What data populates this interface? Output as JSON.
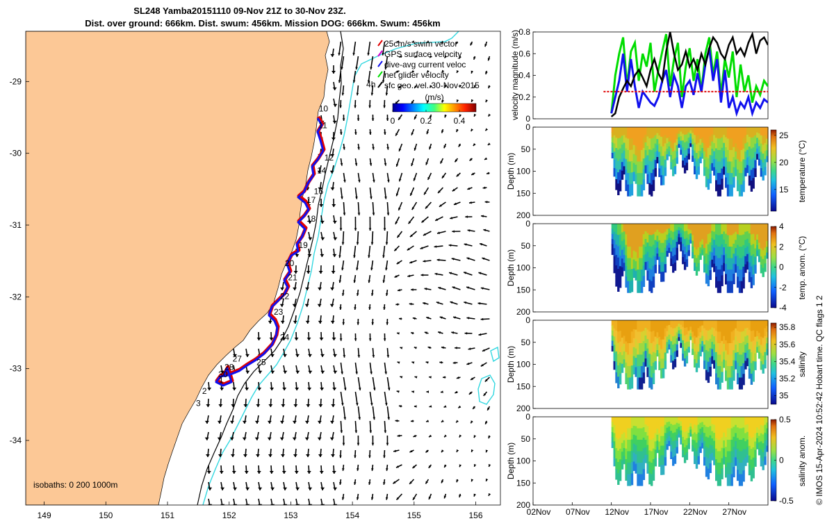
{
  "title": {
    "line1": "SL248 Yamba20151110 09-Nov 21Z to 30-Nov 23Z.",
    "line2": "Dist. over ground: 666km. Dist. swum: 456km. Mission DOG: 666km. Swum: 456km"
  },
  "credit": "© IMOS 15-Apr-2024 10:52:42 Hobart time. QC flags 1 2",
  "colors": {
    "land": "#fcc896",
    "track_red": "#e00000",
    "track_blue": "#1010ee",
    "isobath_200": "#000000",
    "isobath_1000": "#31d7e0",
    "gps": "#d000d0",
    "net": "#00dd00"
  },
  "chart_data": [
    {
      "type": "map",
      "title": "SL248 Yamba20151110 09-Nov 21Z to 30-Nov 23Z.",
      "xticks": [
        149,
        150,
        151,
        152,
        153,
        154,
        155,
        156
      ],
      "yticks": [
        -29,
        -30,
        -31,
        -32,
        -33,
        -34
      ],
      "xlim": [
        148.7,
        156.4
      ],
      "ylim": [
        -34.9,
        -28.3
      ],
      "legend": [
        {
          "label": "25cm/s swim vector",
          "color": "#e00000",
          "icon": "swim-vector"
        },
        {
          "label": "GPS surface velocity",
          "color": "#d000d0",
          "icon": "gps-vector"
        },
        {
          "label": "dive-avg current veloc",
          "color": "#1010ee",
          "icon": "dive-avg-vector"
        },
        {
          "label": "net glider velocity",
          "color": "#00dd00",
          "icon": "net-vector"
        },
        {
          "label": "sfc geo. vel. 30-Nov-2015",
          "color": "#000000",
          "icon": "geo-vector"
        }
      ],
      "legend_position": "top-right",
      "colorbar": {
        "label": "(m/s)",
        "ticks": [
          0,
          0.2,
          0.4
        ],
        "range": [
          0,
          0.5
        ]
      },
      "isobath_label": "isobaths: 0   200  1000m",
      "track_labels": [
        {
          "text": "10",
          "lon": 153.53,
          "lat": -29.42
        },
        {
          "text": "11",
          "lon": 153.52,
          "lat": -29.65
        },
        {
          "text": "12",
          "lon": 153.62,
          "lat": -30.1
        },
        {
          "text": "14",
          "lon": 153.5,
          "lat": -30.28
        },
        {
          "text": "16",
          "lon": 153.45,
          "lat": -30.57
        },
        {
          "text": "17",
          "lon": 153.33,
          "lat": -30.69
        },
        {
          "text": "18",
          "lon": 153.33,
          "lat": -30.95
        },
        {
          "text": "19",
          "lon": 153.2,
          "lat": -31.32
        },
        {
          "text": "20",
          "lon": 152.98,
          "lat": -31.57
        },
        {
          "text": "21",
          "lon": 153.03,
          "lat": -31.77
        },
        {
          "text": "22",
          "lon": 152.9,
          "lat": -32.03
        },
        {
          "text": "23",
          "lon": 152.8,
          "lat": -32.25
        },
        {
          "text": "24",
          "lon": 152.9,
          "lat": -32.6
        },
        {
          "text": "25",
          "lon": 152.52,
          "lat": -32.95
        },
        {
          "text": "27",
          "lon": 152.13,
          "lat": -32.9
        },
        {
          "text": "28",
          "lon": 152.0,
          "lat": -33.02
        },
        {
          "text": "30",
          "lon": 151.9,
          "lat": -33.12
        },
        {
          "text": "1",
          "lon": 151.87,
          "lat": -33.2
        },
        {
          "text": "2",
          "lon": 151.6,
          "lat": -33.35
        },
        {
          "text": "3",
          "lon": 151.5,
          "lat": -33.52
        },
        {
          "text": "4h",
          "lon": 154.3,
          "lat": -29.08
        }
      ]
    },
    {
      "type": "line",
      "ylabel": "velocity magnitude (m/s)",
      "ylim": [
        0,
        0.8
      ],
      "yticks": [
        0,
        0.2,
        0.4,
        0.6,
        0.8
      ],
      "xlim": [
        0,
        30
      ],
      "series": [
        {
          "color": "#00dd00",
          "x": [
            10,
            10.5,
            11,
            11.5,
            12,
            12.5,
            13,
            13.5,
            14,
            14.5,
            15,
            15.5,
            16,
            16.5,
            17,
            17.5,
            18,
            18.5,
            19,
            19.5,
            20,
            20.5,
            21,
            21.5,
            22,
            22.5,
            23,
            23.5,
            24,
            24.5,
            25,
            25.5,
            26,
            26.5,
            27,
            27.5,
            28,
            28.5,
            29,
            29.5,
            30
          ],
          "values": [
            0.05,
            0.4,
            0.6,
            0.75,
            0.3,
            0.62,
            0.7,
            0.35,
            0.6,
            0.48,
            0.7,
            0.25,
            0.45,
            0.62,
            0.78,
            0.3,
            0.55,
            0.7,
            0.2,
            0.48,
            0.65,
            0.35,
            0.55,
            0.25,
            0.6,
            0.75,
            0.4,
            0.62,
            0.22,
            0.55,
            0.38,
            0.62,
            0.2,
            0.5,
            0.25,
            0.4,
            0.15,
            0.3,
            0.22,
            0.35,
            0.3
          ]
        },
        {
          "color": "#1010ee",
          "x": [
            10,
            10.5,
            11,
            11.5,
            12,
            12.5,
            13,
            13.5,
            14,
            14.5,
            15,
            15.5,
            16,
            16.5,
            17,
            17.5,
            18,
            18.5,
            19,
            19.5,
            20,
            20.5,
            21,
            21.5,
            22,
            22.5,
            23,
            23.5,
            24,
            24.5,
            25,
            25.5,
            26,
            26.5,
            27,
            27.5,
            28,
            28.5,
            29,
            29.5,
            30
          ],
          "values": [
            0.05,
            0.2,
            0.35,
            0.6,
            0.25,
            0.55,
            0.3,
            0.1,
            0.25,
            0.2,
            0.15,
            0.12,
            0.2,
            0.35,
            0.45,
            0.2,
            0.4,
            0.3,
            0.1,
            0.3,
            0.35,
            0.22,
            0.42,
            0.25,
            0.5,
            0.65,
            0.35,
            0.55,
            0.15,
            0.45,
            0.1,
            0.2,
            0.05,
            0.15,
            0.1,
            0.2,
            0.05,
            0.15,
            0.1,
            0.18,
            0.15
          ]
        },
        {
          "color": "#000000",
          "x": [
            10,
            10.5,
            11,
            11.5,
            12,
            12.5,
            13,
            13.5,
            14,
            14.5,
            15,
            15.5,
            16,
            16.5,
            17,
            17.5,
            18,
            18.5,
            19,
            19.5,
            20,
            20.5,
            21,
            21.5,
            22,
            22.5,
            23,
            23.5,
            24,
            24.5,
            25,
            25.5,
            26,
            26.5,
            27,
            27.5,
            28,
            28.5,
            29,
            29.5,
            30
          ],
          "values": [
            0.02,
            0.05,
            0.2,
            0.28,
            0.35,
            0.3,
            0.4,
            0.45,
            0.38,
            0.3,
            0.45,
            0.55,
            0.42,
            0.35,
            0.62,
            0.8,
            0.6,
            0.45,
            0.5,
            0.62,
            0.48,
            0.55,
            0.45,
            0.6,
            0.5,
            0.65,
            0.75,
            0.7,
            0.6,
            0.55,
            0.68,
            0.75,
            0.6,
            0.65,
            0.58,
            0.7,
            0.78,
            0.6,
            0.72,
            0.75,
            0.68
          ]
        },
        {
          "color": "#e00000",
          "x": [
            9,
            30
          ],
          "values": [
            0.25,
            0.25
          ]
        }
      ]
    },
    {
      "type": "heatmap",
      "ylabel": "Depth (m)",
      "clabel": "temperature (°C)",
      "ylim": [
        0,
        200
      ],
      "yticks": [
        0,
        50,
        100,
        150,
        200
      ],
      "cticks": [
        15,
        20,
        25
      ],
      "crange": [
        11,
        26
      ]
    },
    {
      "type": "heatmap",
      "ylabel": "Depth (m)",
      "clabel": "temp. anom. (°C)",
      "ylim": [
        0,
        200
      ],
      "yticks": [
        0,
        50,
        100,
        150,
        200
      ],
      "cticks": [
        -4,
        -2,
        0,
        2,
        4
      ],
      "crange": [
        -4,
        4
      ]
    },
    {
      "type": "heatmap",
      "ylabel": "Depth (m)",
      "clabel": "salinity",
      "ylim": [
        0,
        200
      ],
      "yticks": [
        0,
        50,
        100,
        150,
        200
      ],
      "cticks": [
        35,
        35.2,
        35.4,
        35.6,
        35.8
      ],
      "crange": [
        34.9,
        35.85
      ]
    },
    {
      "type": "heatmap",
      "ylabel": "Depth (m)",
      "clabel": "salinity anom.",
      "ylim": [
        0,
        200
      ],
      "yticks": [
        0,
        50,
        100,
        150,
        200
      ],
      "cticks": [
        -0.5,
        0,
        0.5
      ],
      "crange": [
        -0.5,
        0.5
      ],
      "xticks": [
        "02Nov",
        "07Nov",
        "12Nov",
        "17Nov",
        "22Nov",
        "27Nov"
      ]
    }
  ]
}
